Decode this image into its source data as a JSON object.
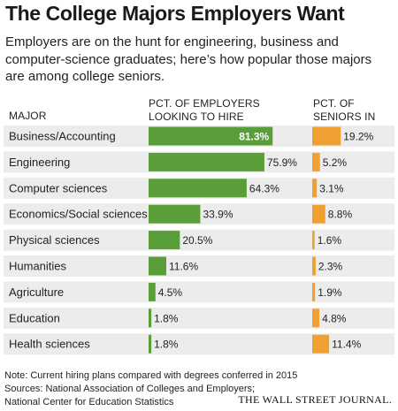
{
  "title": "The College Majors Employers Want",
  "subtitle": "Employers are on the hunt for engineering, business and computer-science graduates; here’s how popular those majors are among college seniors.",
  "headers": {
    "major": "MAJOR",
    "employers": "PCT. OF EMPLOYERS LOOKING TO HIRE",
    "seniors": "PCT. OF SENIORS IN MAJOR"
  },
  "colors": {
    "employers_bar": "#5a9e3a",
    "seniors_bar": "#f0a030",
    "row_band": "#ececec"
  },
  "chart_data": {
    "type": "bar",
    "categories": [
      "Business/Accounting",
      "Engineering",
      "Computer sciences",
      "Economics/Social sciences",
      "Physical sciences",
      "Humanities",
      "Agriculture",
      "Education",
      "Health sciences"
    ],
    "series": [
      {
        "name": "PCT. OF EMPLOYERS LOOKING TO HIRE",
        "values": [
          81.3,
          75.9,
          64.3,
          33.9,
          20.5,
          11.6,
          4.5,
          1.8,
          1.8
        ],
        "labels": [
          "81.3%",
          "75.9%",
          "64.3%",
          "33.9%",
          "20.5%",
          "11.6%",
          "4.5%",
          "1.8%",
          "1.8%"
        ]
      },
      {
        "name": "PCT. OF SENIORS IN MAJOR",
        "values": [
          19.2,
          5.2,
          3.1,
          8.8,
          1.6,
          2.3,
          1.9,
          4.8,
          11.4
        ],
        "labels": [
          "19.2%",
          "5.2%",
          "3.1%",
          "8.8%",
          "1.6%",
          "2.3%",
          "1.9%",
          "4.8%",
          "11.4%"
        ]
      }
    ],
    "grid": false,
    "legend": "none"
  },
  "footer": {
    "note": "Note: Current hiring plans compared with degrees conferred in 2015",
    "sources_line1": "Sources: National Association of Colleges and Employers;",
    "sources_line2": "National Center for Education Statistics",
    "publisher": "THE WALL STREET JOURNAL."
  }
}
